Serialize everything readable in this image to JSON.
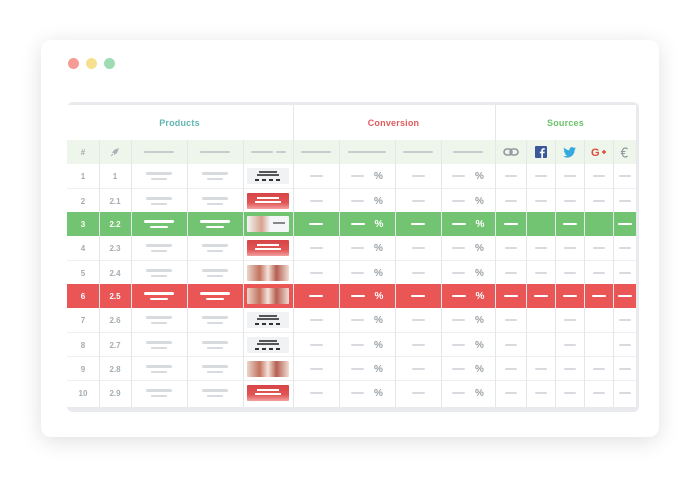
{
  "groups": {
    "products": "Products",
    "conversion": "Conversion",
    "sources": "Sources"
  },
  "header": {
    "hash": "#",
    "rocket_icon": "rocket-icon",
    "source_icons": [
      "link-icon",
      "facebook-icon",
      "twitter-icon",
      "google-plus-icon",
      "euro-icon"
    ]
  },
  "rows": [
    {
      "index": "1",
      "sub": "1",
      "state": "normal",
      "thumb": "light",
      "pct1": "%",
      "pct2": "%"
    },
    {
      "index": "2",
      "sub": "2.1",
      "state": "normal",
      "thumb": "red",
      "pct1": "%",
      "pct2": "%"
    },
    {
      "index": "3",
      "sub": "2.2",
      "state": "green",
      "thumb": "model",
      "pct1": "%",
      "pct2": "%"
    },
    {
      "index": "4",
      "sub": "2.3",
      "state": "normal",
      "thumb": "red",
      "pct1": "%",
      "pct2": "%"
    },
    {
      "index": "5",
      "sub": "2.4",
      "state": "normal",
      "thumb": "photo",
      "pct1": "%",
      "pct2": "%"
    },
    {
      "index": "6",
      "sub": "2.5",
      "state": "red",
      "thumb": "photo",
      "pct1": "%",
      "pct2": "%"
    },
    {
      "index": "7",
      "sub": "2.6",
      "state": "normal",
      "thumb": "light",
      "pct1": "%",
      "pct2": "%"
    },
    {
      "index": "8",
      "sub": "2.7",
      "state": "normal",
      "thumb": "light",
      "pct1": "%",
      "pct2": "%"
    },
    {
      "index": "9",
      "sub": "2.8",
      "state": "normal",
      "thumb": "photo",
      "pct1": "%",
      "pct2": "%"
    },
    {
      "index": "10",
      "sub": "2.9",
      "state": "normal",
      "thumb": "red",
      "pct1": "%",
      "pct2": "%"
    }
  ],
  "colors": {
    "products": "#5fb7b3",
    "conversion": "#e25b5d",
    "sources": "#6cc36c",
    "highlight_green": "#72c472",
    "highlight_red": "#ea5556",
    "facebook": "#3b5998",
    "twitter": "#35a9df",
    "google": "#dd4b39"
  }
}
